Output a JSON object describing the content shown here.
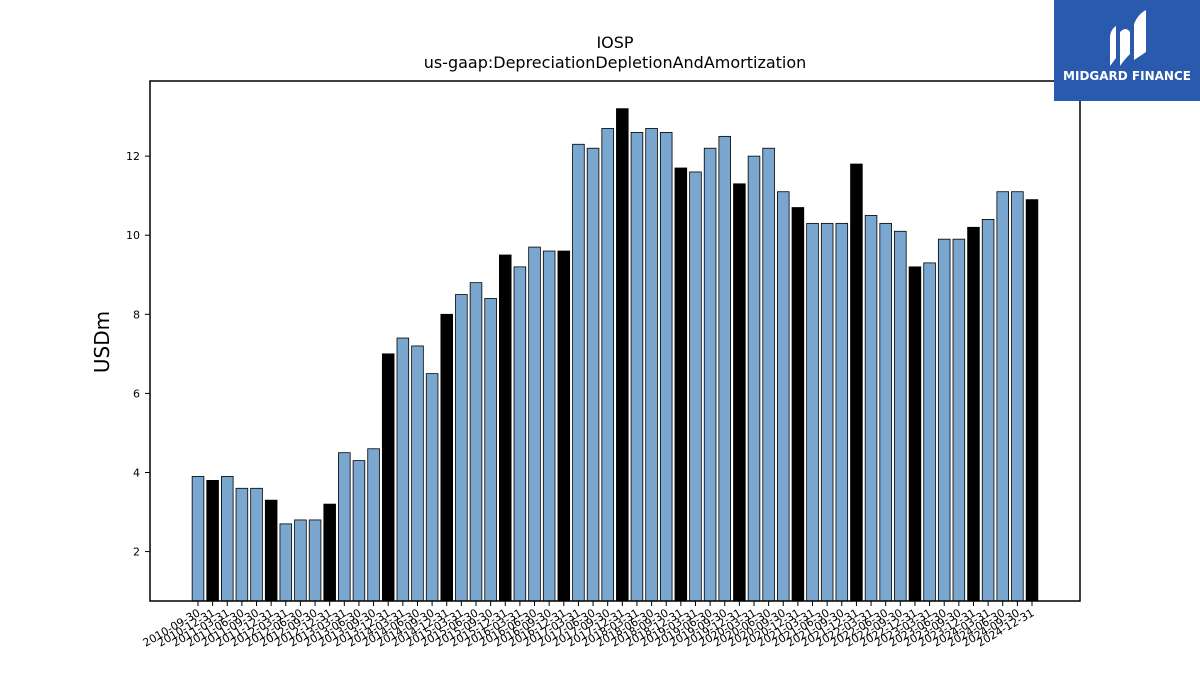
{
  "chart_data": {
    "type": "bar",
    "title": "IOSP",
    "subtitle": "us-gaap:DepreciationDepletionAndAmortization",
    "ylabel": "USDm",
    "xlabel": "",
    "ylim": [
      0.75,
      13.9
    ],
    "yticks": [
      2,
      4,
      6,
      8,
      10,
      12
    ],
    "grid": false,
    "categories": [
      "2010-09-30",
      "2010-12-31",
      "2011-03-31",
      "2011-06-30",
      "2011-09-30",
      "2011-12-31",
      "2012-03-31",
      "2012-06-30",
      "2012-09-30",
      "2012-12-31",
      "2013-03-31",
      "2013-06-30",
      "2013-09-30",
      "2013-12-31",
      "2014-03-31",
      "2014-06-30",
      "2014-09-30",
      "2014-12-31",
      "2015-03-31",
      "2015-06-30",
      "2015-09-30",
      "2015-12-31",
      "2016-03-31",
      "2016-06-30",
      "2016-09-30",
      "2016-12-31",
      "2017-03-31",
      "2017-06-30",
      "2017-09-30",
      "2017-12-31",
      "2018-03-31",
      "2018-06-30",
      "2018-09-30",
      "2018-12-31",
      "2019-03-31",
      "2019-06-30",
      "2019-09-30",
      "2019-12-31",
      "2020-03-31",
      "2020-06-30",
      "2020-09-30",
      "2020-12-31",
      "2021-03-31",
      "2021-06-30",
      "2021-09-30",
      "2021-12-31",
      "2022-03-31",
      "2022-06-30",
      "2022-09-30",
      "2022-12-31",
      "2023-03-31",
      "2023-06-30",
      "2023-09-30",
      "2023-12-31",
      "2024-03-31",
      "2024-06-30",
      "2024-09-30",
      "2024-12-31"
    ],
    "values": [
      3.9,
      3.8,
      3.9,
      3.6,
      3.6,
      3.3,
      2.7,
      2.8,
      2.8,
      3.2,
      4.5,
      4.3,
      4.6,
      7.0,
      7.4,
      7.2,
      6.5,
      8.0,
      8.5,
      8.8,
      8.4,
      9.5,
      9.2,
      9.7,
      9.6,
      9.6,
      12.3,
      12.2,
      12.7,
      13.2,
      12.6,
      12.7,
      12.6,
      11.7,
      11.6,
      12.2,
      12.5,
      11.3,
      12.0,
      12.2,
      11.1,
      10.7,
      10.3,
      10.3,
      10.3,
      11.8,
      10.5,
      10.3,
      10.1,
      9.2,
      9.3,
      9.9,
      9.9,
      10.2,
      10.4,
      11.1,
      11.1,
      10.9
    ],
    "highlight": [
      false,
      true,
      false,
      false,
      false,
      true,
      false,
      false,
      false,
      true,
      false,
      false,
      false,
      true,
      false,
      false,
      false,
      true,
      false,
      false,
      false,
      true,
      false,
      false,
      false,
      true,
      false,
      false,
      false,
      true,
      false,
      false,
      false,
      true,
      false,
      false,
      false,
      true,
      false,
      false,
      false,
      true,
      false,
      false,
      false,
      true,
      false,
      false,
      false,
      true,
      false,
      false,
      false,
      true,
      false,
      false,
      false,
      true
    ],
    "colors": {
      "bar": "#7aa7cf",
      "highlight": "#000000",
      "edge": "#000000"
    }
  },
  "logo": {
    "text": "MIDGARD FINANCE",
    "background": "#2a5aad"
  }
}
